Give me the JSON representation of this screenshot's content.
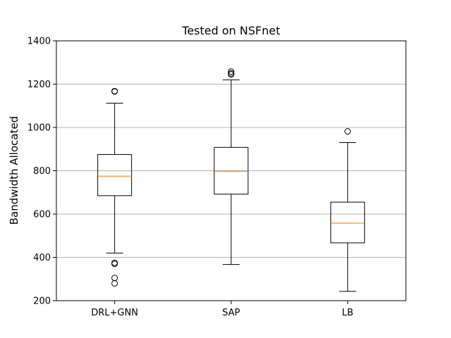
{
  "chart_data": {
    "type": "box",
    "title": "Tested on NSFnet",
    "xlabel": "",
    "ylabel": "Bandwidth Allocated",
    "ylim": [
      200,
      1400
    ],
    "yticks": [
      200,
      400,
      600,
      800,
      1000,
      1200,
      1400
    ],
    "grid": "horizontal",
    "categories": [
      "DRL+GNN",
      "SAP",
      "LB"
    ],
    "series": [
      {
        "whisker_low": 420,
        "q1": 685,
        "median": 775,
        "q3": 875,
        "whisker_high": 1112,
        "outliers": [
          1166,
          1168,
          375,
          370,
          305,
          280
        ]
      },
      {
        "whisker_low": 367,
        "q1": 692,
        "median": 798,
        "q3": 908,
        "whisker_high": 1220,
        "outliers": [
          1258,
          1250,
          1245
        ]
      },
      {
        "whisker_low": 243,
        "q1": 467,
        "median": 558,
        "q3": 655,
        "whisker_high": 930,
        "outliers": [
          982
        ]
      }
    ],
    "colors": {
      "box": "#000000",
      "median": "#ff7f0e",
      "grid": "#b0b0b0"
    }
  }
}
